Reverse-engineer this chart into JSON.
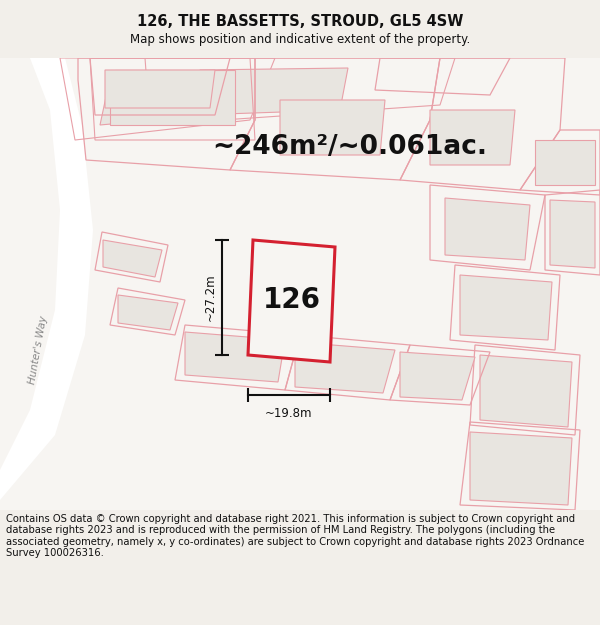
{
  "title": "126, THE BASSETTS, STROUD, GL5 4SW",
  "subtitle": "Map shows position and indicative extent of the property.",
  "area_text": "~246m²/~0.061ac.",
  "label_126": "126",
  "dim_width": "~19.8m",
  "dim_height": "~27.2m",
  "street_label": "Hunter's Way",
  "footer": "Contains OS data © Crown copyright and database right 2021. This information is subject to Crown copyright and database rights 2023 and is reproduced with the permission of HM Land Registry. The polygons (including the associated geometry, namely x, y co-ordinates) are subject to Crown copyright and database rights 2023 Ordnance Survey 100026316.",
  "bg_color": "#f2efea",
  "map_bg": "#f7f5f2",
  "road_color": "#ffffff",
  "plot_outline_color": "#d42030",
  "other_outline_color": "#e8a0a8",
  "plot_fill": "#e8e5e0",
  "land_fill": "#e8e5e0",
  "title_fontsize": 10.5,
  "subtitle_fontsize": 8.5,
  "area_fontsize": 19,
  "label_fontsize": 20,
  "footer_fontsize": 7.2,
  "dim_fontsize": 8.5
}
